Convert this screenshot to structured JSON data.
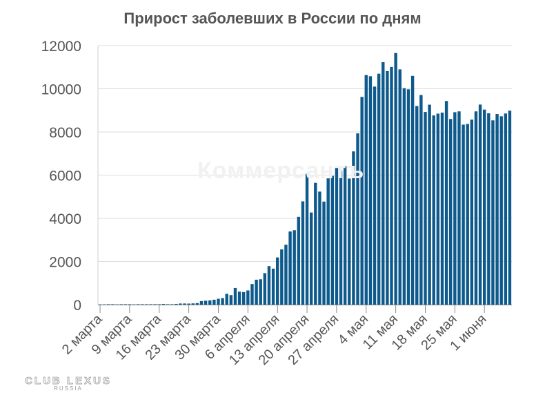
{
  "title": "Прирост заболевших в России по дням",
  "watermark": "Коммерсантъ",
  "logo": {
    "main": "CLUB LEXUS",
    "sub": "RUSSIA"
  },
  "chart_data": {
    "type": "bar",
    "title": "Прирост заболевших в России по дням",
    "xlabel": "",
    "ylabel": "",
    "ylim": [
      0,
      12000
    ],
    "yticks": [
      0,
      2000,
      4000,
      6000,
      8000,
      10000,
      12000
    ],
    "grid": true,
    "color": "#0e5a8c",
    "tick_labels": [
      "2 марта",
      "9 марта",
      "16 марта",
      "23 марта",
      "30 марта",
      "6 апреля",
      "13 апреля",
      "20 апреля",
      "27 апреля",
      "4 мая",
      "11 мая",
      "18 мая",
      "25 мая",
      "1 июня"
    ],
    "tick_indices": [
      0,
      7,
      14,
      21,
      28,
      35,
      42,
      49,
      56,
      63,
      70,
      77,
      84,
      91
    ],
    "values": [
      0,
      0,
      2,
      1,
      0,
      3,
      3,
      2,
      0,
      3,
      5,
      14,
      6,
      13,
      4,
      30,
      3,
      8,
      33,
      52,
      53,
      49,
      57,
      71,
      163,
      182,
      196,
      228,
      270,
      302,
      501,
      440,
      771,
      601,
      582,
      658,
      954,
      1154,
      1175,
      1459,
      1786,
      1667,
      2186,
      2558,
      2774,
      3388,
      3448,
      4070,
      4785,
      6060,
      4268,
      5642,
      5236,
      4774,
      5849,
      5966,
      6361,
      6198,
      6411,
      5841,
      7099,
      7933,
      9623,
      10633,
      10581,
      10102,
      10699,
      11231,
      10817,
      11012,
      11656,
      10899,
      10028,
      9974,
      10598,
      9200,
      9709,
      8926,
      9263,
      8764,
      8849,
      8894,
      9434,
      8599,
      8915,
      8952,
      8338,
      8371,
      8572,
      8952,
      9268,
      9035,
      8863,
      8536,
      8831,
      8726,
      8855,
      8985
    ]
  }
}
